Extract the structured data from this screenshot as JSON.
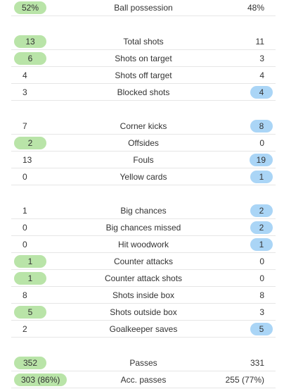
{
  "groups": [
    {
      "rows": [
        {
          "home": "52%",
          "label": "Ball possession",
          "away": "48%",
          "highlight": "home"
        }
      ]
    },
    {
      "rows": [
        {
          "home": "13",
          "label": "Total shots",
          "away": "11",
          "highlight": "home"
        },
        {
          "home": "6",
          "label": "Shots on target",
          "away": "3",
          "highlight": "home"
        },
        {
          "home": "4",
          "label": "Shots off target",
          "away": "4",
          "highlight": "none"
        },
        {
          "home": "3",
          "label": "Blocked shots",
          "away": "4",
          "highlight": "away"
        }
      ]
    },
    {
      "rows": [
        {
          "home": "7",
          "label": "Corner kicks",
          "away": "8",
          "highlight": "away"
        },
        {
          "home": "2",
          "label": "Offsides",
          "away": "0",
          "highlight": "home"
        },
        {
          "home": "13",
          "label": "Fouls",
          "away": "19",
          "highlight": "away"
        },
        {
          "home": "0",
          "label": "Yellow cards",
          "away": "1",
          "highlight": "away"
        }
      ]
    },
    {
      "rows": [
        {
          "home": "1",
          "label": "Big chances",
          "away": "2",
          "highlight": "away"
        },
        {
          "home": "0",
          "label": "Big chances missed",
          "away": "2",
          "highlight": "away"
        },
        {
          "home": "0",
          "label": "Hit woodwork",
          "away": "1",
          "highlight": "away"
        },
        {
          "home": "1",
          "label": "Counter attacks",
          "away": "0",
          "highlight": "home"
        },
        {
          "home": "1",
          "label": "Counter attack shots",
          "away": "0",
          "highlight": "home"
        },
        {
          "home": "8",
          "label": "Shots inside box",
          "away": "8",
          "highlight": "none"
        },
        {
          "home": "5",
          "label": "Shots outside box",
          "away": "3",
          "highlight": "home"
        },
        {
          "home": "2",
          "label": "Goalkeeper saves",
          "away": "5",
          "highlight": "away"
        }
      ]
    },
    {
      "rows": [
        {
          "home": "352",
          "label": "Passes",
          "away": "331",
          "highlight": "home"
        },
        {
          "home": "303 (86%)",
          "label": "Acc. passes",
          "away": "255 (77%)",
          "highlight": "home"
        }
      ]
    }
  ]
}
